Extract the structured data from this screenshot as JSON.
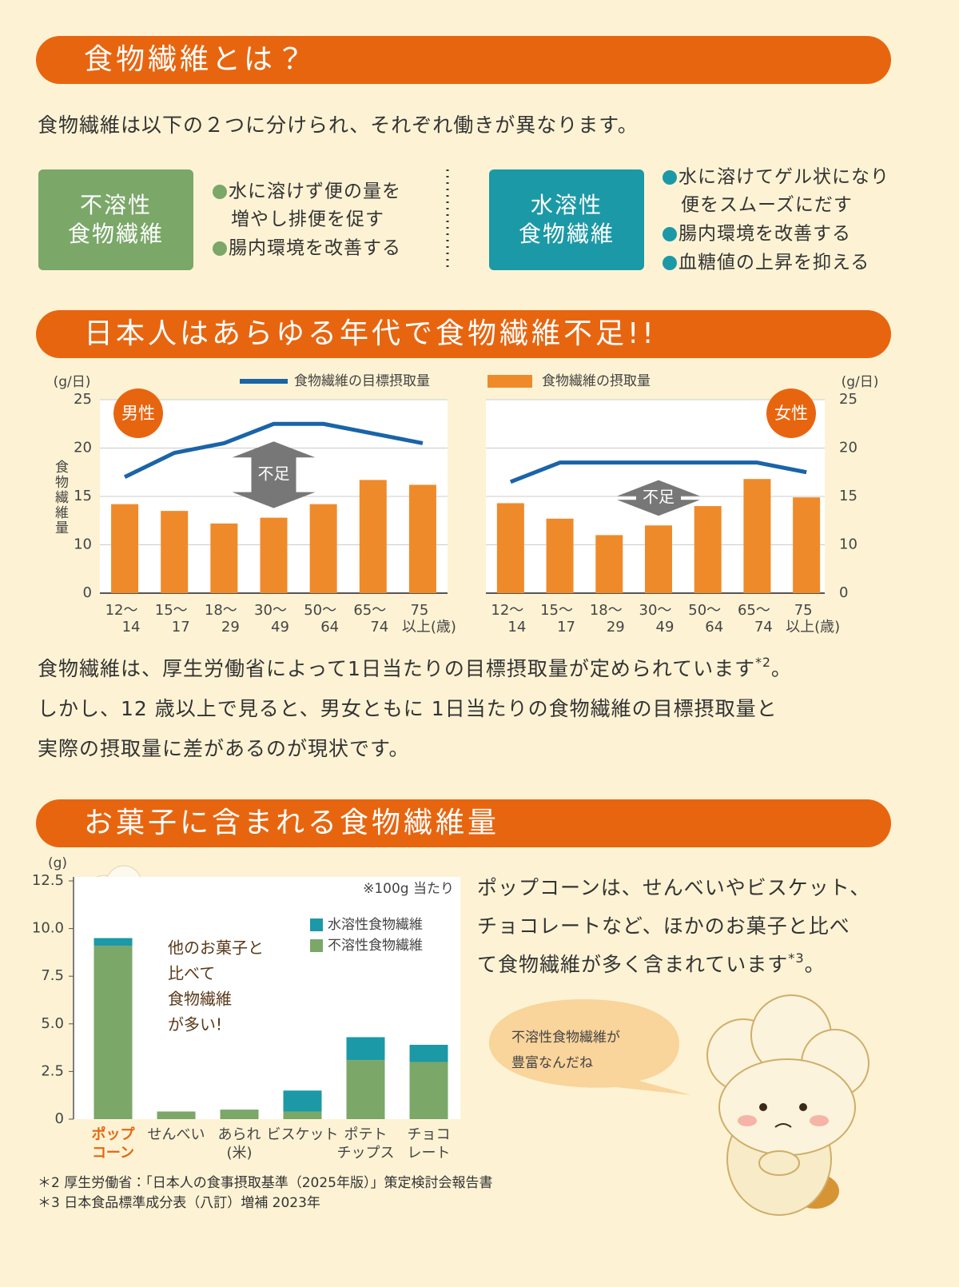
{
  "headers": [
    "食物繊維とは？",
    "日本人はあらゆる年代で食物繊維不足!!",
    "お菓子に含まれる食物繊維量"
  ],
  "intro": "食物繊維は以下の２つに分けられ、それぞれ働きが異なります。",
  "fiber_types": [
    {
      "title": [
        "不溶性",
        "食物繊維"
      ],
      "color": "#7ba769",
      "items": [
        [
          "水に溶けず便の量を",
          "増やし排便を促す"
        ],
        [
          "腸内環境を改善する"
        ]
      ]
    },
    {
      "title": [
        "水溶性",
        "食物繊維"
      ],
      "color": "#1c99a6",
      "items": [
        [
          "水に溶けてゲル状になり",
          "便をスムーズにだす"
        ],
        [
          "腸内環境を改善する"
        ],
        [
          "血糖値の上昇を抑える"
        ]
      ]
    }
  ],
  "paragraph1": {
    "lines": [
      "食物繊維は、厚生労働省によって1日当たりの目標摂取量が定められています",
      "しかし、12 歳以上で見ると、男女ともに 1日当たりの食物繊維の目標摂取量と",
      "実際の摂取量に差があるのが現状です。"
    ],
    "note": "*2",
    "note_tail": "。"
  },
  "paragraph2": {
    "lines": [
      "ポップコーンは、せんべいやビスケット、",
      "チョコレートなど、ほかのお菓子と比べ",
      "て食物繊維が多く含まれています"
    ],
    "note": "*3",
    "note_tail": "。"
  },
  "character_bubble": [
    "不溶性食物繊維が",
    "豊富なんだね"
  ],
  "footnotes": [
    "＊2  厚生労働省：「日本人の食事摂取基準（2025年版）」策定検討会報告書",
    "＊3  日本食品標準成分表（八訂）増補 2023年"
  ],
  "chart_data": [
    {
      "type": "combo",
      "badge": "男性",
      "annotation": "不足",
      "y_label": "食物繊維量",
      "y_unit": "(g/日)",
      "y_axis_side": "left",
      "legend_position": "top",
      "broken_axis": true,
      "categories": [
        [
          "12〜",
          "14"
        ],
        [
          "15〜",
          "17"
        ],
        [
          "18〜",
          "29"
        ],
        [
          "30〜",
          "49"
        ],
        [
          "50〜",
          "64"
        ],
        [
          "65〜",
          "74"
        ],
        [
          "75",
          "以上(歳)"
        ]
      ],
      "series": [
        {
          "name": "食物繊維の目標摂取量",
          "type": "line",
          "color": "#1a64a8",
          "values": [
            17,
            19.5,
            20.5,
            22.5,
            22.5,
            21.5,
            20.5
          ]
        },
        {
          "name": "食物繊維の摂取量",
          "type": "bar",
          "color": "#ef8a2a",
          "values": [
            14.2,
            13.5,
            12.2,
            12.8,
            14.2,
            16.7,
            16.2
          ]
        }
      ],
      "ylim": [
        0,
        25
      ],
      "yticks": [
        0,
        10,
        15,
        20,
        25
      ],
      "grid": true
    },
    {
      "type": "combo",
      "badge": "女性",
      "annotation": "不足",
      "y_unit": "(g/日)",
      "y_axis_side": "right",
      "broken_axis": true,
      "categories": [
        [
          "12〜",
          "14"
        ],
        [
          "15〜",
          "17"
        ],
        [
          "18〜",
          "29"
        ],
        [
          "30〜",
          "49"
        ],
        [
          "50〜",
          "64"
        ],
        [
          "65〜",
          "74"
        ],
        [
          "75",
          "以上(歳)"
        ]
      ],
      "series": [
        {
          "type": "line",
          "color": "#1a64a8",
          "values": [
            16.5,
            18.5,
            18.5,
            18.5,
            18.5,
            18.5,
            17.5
          ]
        },
        {
          "type": "bar",
          "color": "#ef8a2a",
          "values": [
            14.3,
            12.7,
            11,
            12,
            14,
            16.8,
            14.9
          ]
        }
      ],
      "ylim": [
        0,
        25
      ],
      "yticks": [
        0,
        10,
        15,
        20,
        25
      ],
      "grid": true
    },
    {
      "type": "stacked_bar",
      "y_unit": "(g)",
      "note": "※100g 当たり",
      "callout": [
        "他のお菓子と",
        "比べて",
        "食物繊維",
        "が多い!"
      ],
      "categories": [
        [
          "ポップ",
          "コーン"
        ],
        [
          "せんべい"
        ],
        [
          "あられ",
          "(米)"
        ],
        [
          "ビスケット"
        ],
        [
          "ポテト",
          "チップス"
        ],
        [
          "チョコ",
          "レート"
        ]
      ],
      "highlight_index": 0,
      "highlight_color": "#e8650f",
      "series": [
        {
          "name": "水溶性食物繊維",
          "color": "#1c99a6",
          "values": [
            0.4,
            0,
            0,
            1.1,
            1.2,
            0.9
          ]
        },
        {
          "name": "不溶性食物繊維",
          "color": "#7ba769",
          "values": [
            9.1,
            0.4,
            0.5,
            0.4,
            3.1,
            3.0
          ]
        }
      ],
      "ylim": [
        0,
        12.5
      ],
      "yticks": [
        0,
        2.5,
        {
          "value": 5,
          "label": "5.0"
        },
        7.5,
        {
          "value": 10,
          "label": "10.0"
        },
        12.5
      ],
      "grid": false
    }
  ]
}
